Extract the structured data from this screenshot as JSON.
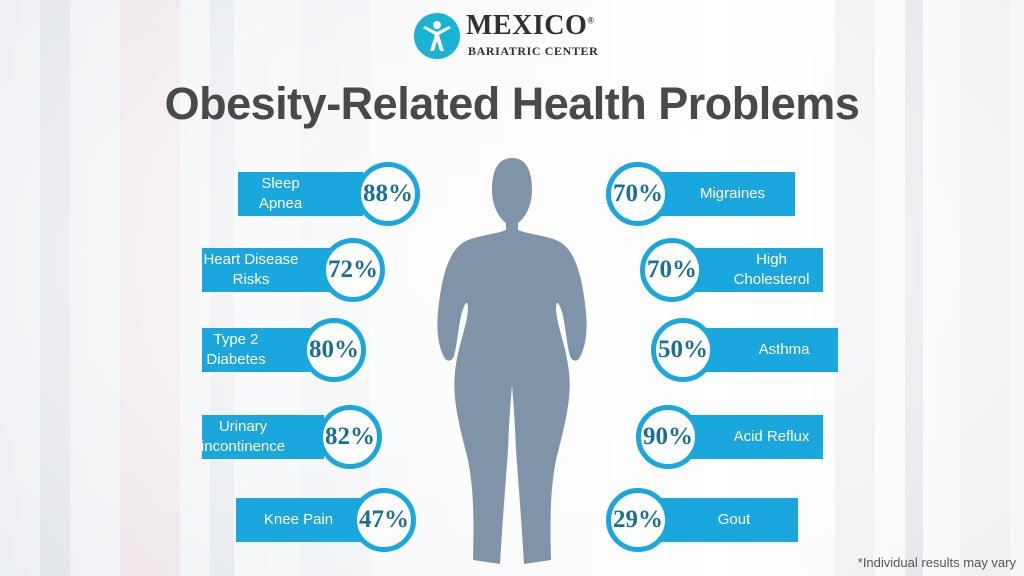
{
  "logo": {
    "word": "MEXICO",
    "registered": "®",
    "subtitle": "BARIATRIC CENTER",
    "mark": "person-icon",
    "brand_color": "#1ab3d3"
  },
  "title": "Obesity-Related Health Problems",
  "left_items": [
    {
      "label": "Sleep Apnea",
      "percent": "88%"
    },
    {
      "label": "Heart Disease Risks",
      "percent": "72%"
    },
    {
      "label": "Type 2 Diabetes",
      "percent": "80%"
    },
    {
      "label": "Urinary incontinence",
      "percent": "82%"
    },
    {
      "label": "Knee Pain",
      "percent": "47%"
    }
  ],
  "right_items": [
    {
      "label": "Migraines",
      "percent": "70%"
    },
    {
      "label": "High Cholesterol",
      "percent": "70%"
    },
    {
      "label": "Asthma",
      "percent": "50%"
    },
    {
      "label": "Acid Reflux",
      "percent": "90%"
    },
    {
      "label": "Gout",
      "percent": "29%"
    }
  ],
  "footnote": "*Individual results may vary",
  "colors": {
    "accent": "#1aa7dd",
    "percent_text": "#1a6f96",
    "title": "#494949",
    "silhouette": "#7f93a9"
  }
}
